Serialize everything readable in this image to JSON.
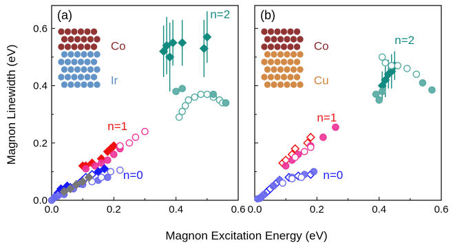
{
  "figure": {
    "xlabel": "Magnon Excitation Energy (eV)",
    "ylabel": "Magnon Linewidth (eV)"
  },
  "colors": {
    "n0": "#1a1aff",
    "n0_light": "#6a6aee",
    "n1_red": "#ee1111",
    "n1_pink": "#ee3399",
    "n2": "#128a80",
    "n2_light": "#55aaa2",
    "co_atom": "#8b2a2a",
    "ir_atom": "#5b8fc6",
    "cu_atom": "#d2843e",
    "ref_gray": "#777777"
  },
  "chart_data": [
    {
      "type": "scatter",
      "panel_label": "(a)",
      "xlim": [
        0,
        0.6
      ],
      "ylim": [
        0,
        0.68
      ],
      "xticks": [
        "0.0",
        "0.2",
        "0.4",
        "0.6"
      ],
      "yticks": [
        "0.0",
        "0.2",
        "0.4",
        "0.6"
      ],
      "annotations": [
        {
          "text": "n=2",
          "x": 0.51,
          "y": 0.635,
          "color": "n2"
        },
        {
          "text": "n=1",
          "x": 0.18,
          "y": 0.245,
          "color": "n1_red"
        },
        {
          "text": "n=0",
          "x": 0.23,
          "y": 0.075,
          "color": "n0"
        },
        {
          "text": "Co",
          "x": 0.19,
          "y": 0.525,
          "color": "co_atom"
        },
        {
          "text": "Ir",
          "x": 0.19,
          "y": 0.405,
          "color": "ir_atom"
        }
      ],
      "lattice": {
        "top_element": "Co",
        "bottom_element": "Ir",
        "top_color": "co_atom",
        "bottom_color": "ir_atom"
      },
      "series": [
        {
          "marker": "diamond",
          "fill": true,
          "color": "n2",
          "errorbars": true,
          "points": [
            [
              0.36,
              0.52,
              0.09
            ],
            [
              0.37,
              0.54,
              0.1
            ],
            [
              0.38,
              0.5,
              0.12
            ],
            [
              0.39,
              0.55,
              0.08
            ],
            [
              0.42,
              0.55,
              0.08
            ],
            [
              0.49,
              0.53,
              0.1
            ],
            [
              0.5,
              0.57,
              0.09
            ]
          ]
        },
        {
          "marker": "circle",
          "fill": false,
          "color": "n2_light",
          "points": [
            [
              0.41,
              0.29
            ],
            [
              0.42,
              0.31
            ],
            [
              0.43,
              0.33
            ],
            [
              0.44,
              0.35
            ],
            [
              0.46,
              0.36
            ],
            [
              0.48,
              0.37
            ],
            [
              0.5,
              0.37
            ],
            [
              0.52,
              0.36
            ],
            [
              0.54,
              0.35
            ],
            [
              0.55,
              0.34
            ],
            [
              0.56,
              0.34
            ]
          ]
        },
        {
          "marker": "circle",
          "fill": true,
          "color": "n2_light",
          "points": [
            [
              0.4,
              0.38
            ],
            [
              0.42,
              0.39
            ],
            [
              0.52,
              0.37
            ],
            [
              0.56,
              0.34
            ]
          ]
        },
        {
          "marker": "diamond",
          "fill": true,
          "color": "n1_red",
          "points": [
            [
              0.1,
              0.12
            ],
            [
              0.11,
              0.12
            ],
            [
              0.13,
              0.13
            ],
            [
              0.16,
              0.145
            ],
            [
              0.18,
              0.17
            ],
            [
              0.19,
              0.18
            ],
            [
              0.2,
              0.19
            ]
          ]
        },
        {
          "marker": "circle",
          "fill": true,
          "color": "n1_pink",
          "points": [
            [
              0.11,
              0.11
            ],
            [
              0.14,
              0.12
            ],
            [
              0.16,
              0.13
            ],
            [
              0.18,
              0.14
            ],
            [
              0.2,
              0.16
            ],
            [
              0.22,
              0.18
            ]
          ]
        },
        {
          "marker": "circle",
          "fill": false,
          "color": "n1_pink",
          "points": [
            [
              0.22,
              0.19
            ],
            [
              0.25,
              0.2
            ],
            [
              0.27,
              0.22
            ],
            [
              0.3,
              0.24
            ]
          ]
        },
        {
          "marker": "diamond",
          "fill": true,
          "color": "n0",
          "points": [
            [
              0.01,
              0.01
            ],
            [
              0.02,
              0.025
            ],
            [
              0.03,
              0.04
            ],
            [
              0.05,
              0.05
            ],
            [
              0.08,
              0.055
            ],
            [
              0.1,
              0.07
            ],
            [
              0.12,
              0.08
            ],
            [
              0.15,
              0.1
            ],
            [
              0.17,
              0.11
            ]
          ]
        },
        {
          "marker": "diamond",
          "fill": false,
          "color": "n0",
          "points": [
            [
              0.02,
              0.02
            ],
            [
              0.04,
              0.035
            ],
            [
              0.06,
              0.045
            ],
            [
              0.09,
              0.06
            ],
            [
              0.11,
              0.08
            ],
            [
              0.13,
              0.09
            ]
          ]
        },
        {
          "marker": "circle",
          "fill": true,
          "color": "n0_light",
          "points": [
            [
              0.0,
              0.0
            ],
            [
              0.01,
              0.01
            ],
            [
              0.02,
              0.015
            ],
            [
              0.04,
              0.02
            ],
            [
              0.07,
              0.04
            ],
            [
              0.1,
              0.055
            ],
            [
              0.15,
              0.07
            ],
            [
              0.18,
              0.08
            ]
          ]
        },
        {
          "marker": "circle",
          "fill": false,
          "color": "n0_light",
          "points": [
            [
              0.13,
              0.065
            ],
            [
              0.16,
              0.08
            ],
            [
              0.19,
              0.1
            ],
            [
              0.22,
              0.105
            ]
          ]
        },
        {
          "marker": "diamond",
          "fill": true,
          "color": "ref_gray",
          "points": [
            [
              0.04,
              0.03
            ],
            [
              0.06,
              0.04
            ],
            [
              0.08,
              0.055
            ],
            [
              0.1,
              0.065
            ],
            [
              0.12,
              0.08
            ]
          ]
        }
      ]
    },
    {
      "type": "scatter",
      "panel_label": "(b)",
      "xlim": [
        0,
        0.6
      ],
      "ylim": [
        0,
        0.68
      ],
      "xticks": [
        "0.0",
        "0.2",
        "0.4",
        "0.6"
      ],
      "yticks": [],
      "annotations": [
        {
          "text": "n=2",
          "x": 0.45,
          "y": 0.545,
          "color": "n2"
        },
        {
          "text": "n=1",
          "x": 0.2,
          "y": 0.275,
          "color": "n1_red"
        },
        {
          "text": "n=0",
          "x": 0.22,
          "y": 0.075,
          "color": "n0"
        },
        {
          "text": "Co",
          "x": 0.19,
          "y": 0.525,
          "color": "co_atom"
        },
        {
          "text": "Cu",
          "x": 0.19,
          "y": 0.405,
          "color": "cu_atom"
        }
      ],
      "lattice": {
        "top_element": "Co",
        "bottom_element": "Cu",
        "top_color": "co_atom",
        "bottom_color": "cu_atom"
      },
      "series": [
        {
          "marker": "diamond",
          "fill": true,
          "color": "n2",
          "errorbars": true,
          "points": [
            [
              0.41,
              0.4,
              0.05
            ],
            [
              0.42,
              0.42,
              0.06
            ],
            [
              0.43,
              0.44,
              0.05
            ],
            [
              0.44,
              0.45,
              0.06
            ],
            [
              0.45,
              0.47,
              0.05
            ]
          ]
        },
        {
          "marker": "circle",
          "fill": false,
          "color": "n2_light",
          "points": [
            [
              0.41,
              0.5
            ],
            [
              0.42,
              0.48
            ],
            [
              0.44,
              0.47
            ],
            [
              0.46,
              0.47
            ],
            [
              0.49,
              0.46
            ],
            [
              0.52,
              0.44
            ]
          ]
        },
        {
          "marker": "circle",
          "fill": true,
          "color": "n2_light",
          "points": [
            [
              0.39,
              0.37
            ],
            [
              0.4,
              0.35
            ],
            [
              0.41,
              0.38
            ],
            [
              0.54,
              0.41
            ],
            [
              0.57,
              0.385
            ]
          ]
        },
        {
          "marker": "diamond",
          "fill": false,
          "color": "n1_red",
          "points": [
            [
              0.09,
              0.13
            ],
            [
              0.1,
              0.14
            ],
            [
              0.12,
              0.16
            ],
            [
              0.13,
              0.18
            ],
            [
              0.17,
              0.2
            ],
            [
              0.18,
              0.22
            ]
          ]
        },
        {
          "marker": "circle",
          "fill": true,
          "color": "n1_pink",
          "points": [
            [
              0.1,
              0.12
            ],
            [
              0.12,
              0.14
            ],
            [
              0.14,
              0.16
            ],
            [
              0.18,
              0.19
            ],
            [
              0.22,
              0.22
            ],
            [
              0.26,
              0.255
            ]
          ]
        },
        {
          "marker": "circle",
          "fill": false,
          "color": "n1_pink",
          "points": [
            [
              0.13,
              0.15
            ],
            [
              0.16,
              0.17
            ],
            [
              0.18,
              0.185
            ]
          ]
        },
        {
          "marker": "diamond",
          "fill": false,
          "color": "n0",
          "points": [
            [
              0.02,
              0.01
            ],
            [
              0.04,
              0.03
            ],
            [
              0.05,
              0.04
            ],
            [
              0.07,
              0.06
            ],
            [
              0.08,
              0.07
            ],
            [
              0.11,
              0.08
            ],
            [
              0.14,
              0.085
            ],
            [
              0.18,
              0.09
            ]
          ]
        },
        {
          "marker": "circle",
          "fill": true,
          "color": "n0_light",
          "points": [
            [
              0.01,
              0.005
            ],
            [
              0.02,
              0.01
            ],
            [
              0.03,
              0.02
            ],
            [
              0.06,
              0.05
            ],
            [
              0.08,
              0.07
            ],
            [
              0.12,
              0.08
            ],
            [
              0.16,
              0.09
            ],
            [
              0.19,
              0.1
            ]
          ]
        },
        {
          "marker": "circle",
          "fill": false,
          "color": "n0_light",
          "points": [
            [
              0.09,
              0.06
            ],
            [
              0.12,
              0.075
            ],
            [
              0.15,
              0.08
            ]
          ]
        }
      ]
    }
  ]
}
